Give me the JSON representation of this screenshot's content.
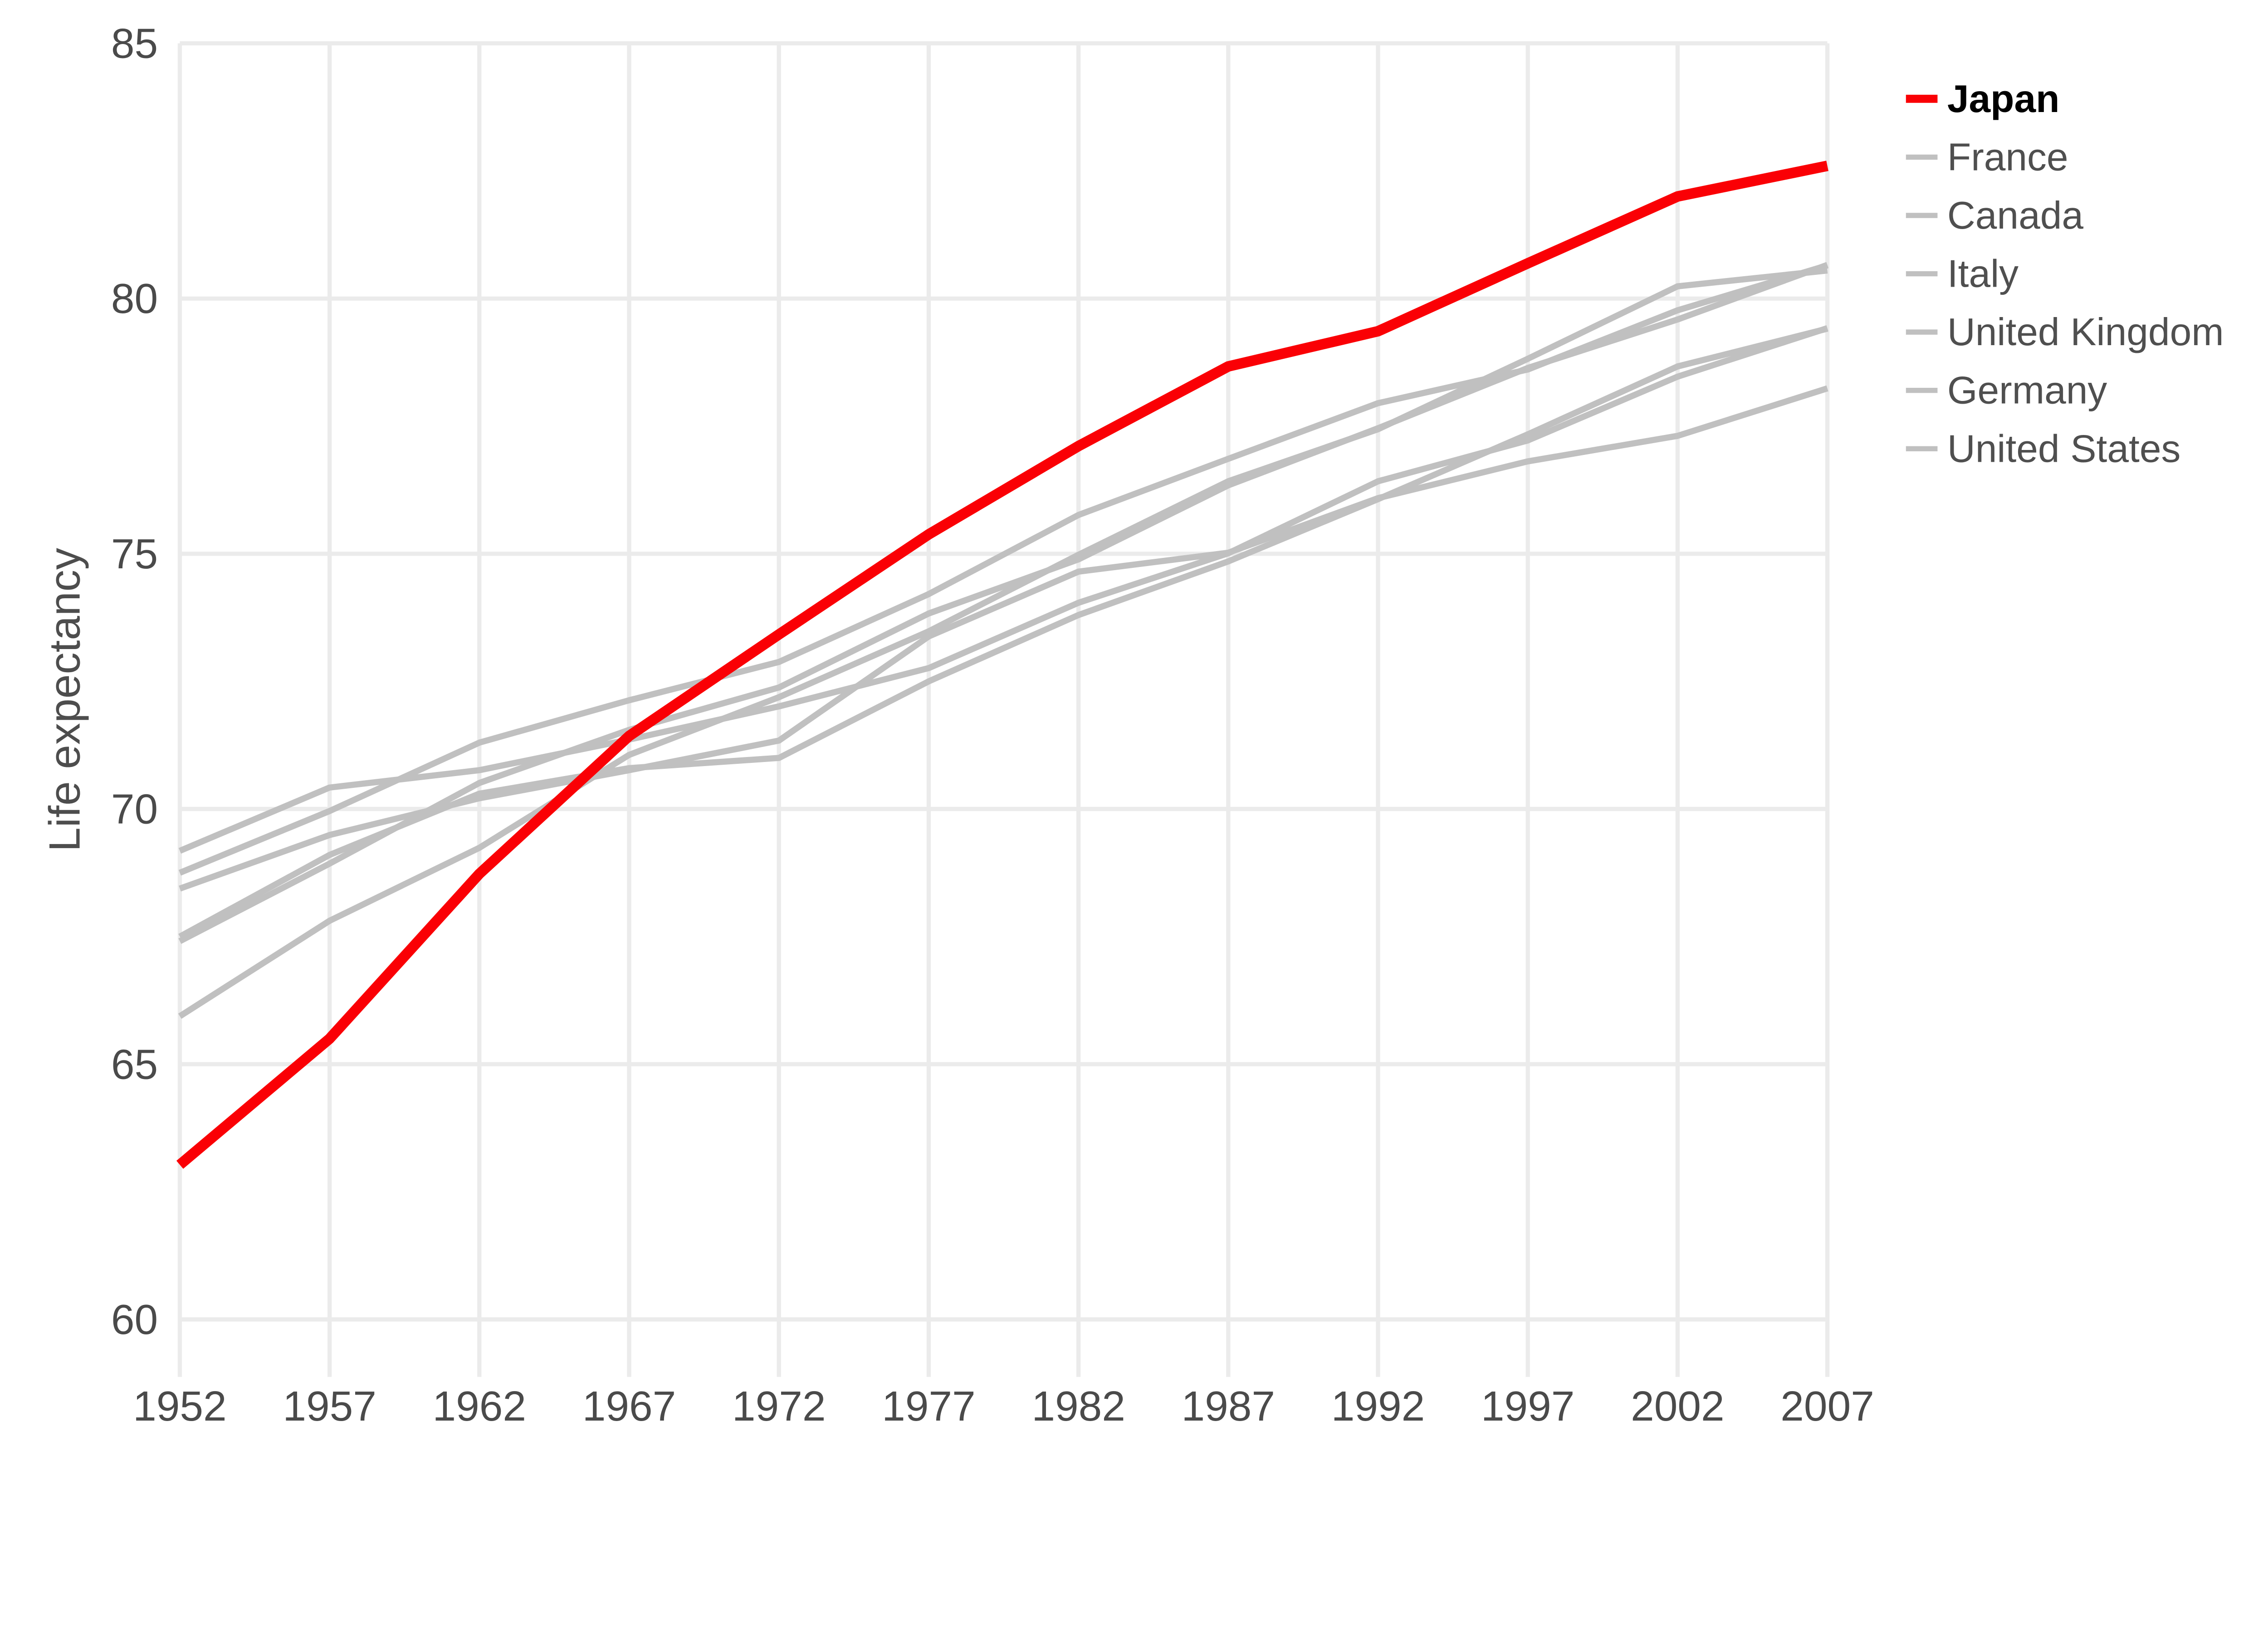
{
  "page": {
    "background": "#ffffff"
  },
  "chart_data": {
    "type": "line",
    "title": "",
    "subtitle": "",
    "xlabel": "",
    "ylabel": "Life expectancy",
    "xlim": [
      1952,
      2007
    ],
    "ylim": [
      60,
      85
    ],
    "grid": "both",
    "legend_position": "right",
    "highlight_series": "Japan",
    "x": [
      1952,
      1957,
      1962,
      1967,
      1972,
      1977,
      1982,
      1987,
      1992,
      1997,
      2002,
      2007
    ],
    "x_tick_labels": [
      "1952",
      "1957",
      "1962",
      "1967",
      "1972",
      "1977",
      "1982",
      "1987",
      "1992",
      "1997",
      "2002",
      "2007"
    ],
    "y_ticks": [
      60,
      65,
      70,
      75,
      80,
      85
    ],
    "y_tick_labels": [
      "60",
      "65",
      "70",
      "75",
      "80",
      "85"
    ],
    "series": [
      {
        "name": "Japan",
        "color": "#fa0005",
        "emphasis": true,
        "values": [
          63.03,
          65.5,
          68.73,
          71.43,
          73.42,
          75.38,
          77.11,
          78.67,
          79.36,
          80.69,
          82.0,
          82.6
        ]
      },
      {
        "name": "France",
        "color": "#c0c0c0",
        "emphasis": false,
        "values": [
          67.41,
          68.93,
          70.51,
          71.55,
          72.38,
          73.83,
          74.89,
          76.34,
          77.46,
          78.64,
          79.59,
          80.66
        ]
      },
      {
        "name": "Canada",
        "color": "#c0c0c0",
        "emphasis": false,
        "values": [
          68.75,
          69.96,
          71.3,
          72.13,
          72.88,
          74.21,
          75.76,
          76.86,
          77.95,
          78.61,
          79.77,
          80.65
        ]
      },
      {
        "name": "Italy",
        "color": "#c0c0c0",
        "emphasis": false,
        "values": [
          65.94,
          67.81,
          69.24,
          71.06,
          72.19,
          73.48,
          74.98,
          76.42,
          77.44,
          78.82,
          80.24,
          80.55
        ]
      },
      {
        "name": "United Kingdom",
        "color": "#c0c0c0",
        "emphasis": false,
        "values": [
          69.18,
          70.42,
          70.76,
          71.36,
          72.01,
          72.76,
          74.04,
          75.01,
          76.42,
          77.22,
          78.47,
          79.42
        ]
      },
      {
        "name": "Germany",
        "color": "#c0c0c0",
        "emphasis": false,
        "values": [
          67.5,
          69.1,
          70.3,
          70.8,
          71.0,
          72.5,
          73.8,
          74.85,
          76.07,
          77.34,
          78.67,
          79.41
        ]
      },
      {
        "name": "United States",
        "color": "#c0c0c0",
        "emphasis": false,
        "values": [
          68.44,
          69.49,
          70.21,
          70.76,
          71.34,
          73.38,
          74.65,
          75.02,
          76.09,
          76.81,
          77.31,
          78.24
        ]
      }
    ],
    "colors": {
      "highlight": "#fa0005",
      "muted_series": "#c0c0c0",
      "gridline": "#ebebeb",
      "tick_text": "#4a4a4a",
      "legend_text": "#4f4f4f",
      "highlight_legend_text": "#000000",
      "background": "#ffffff"
    }
  }
}
